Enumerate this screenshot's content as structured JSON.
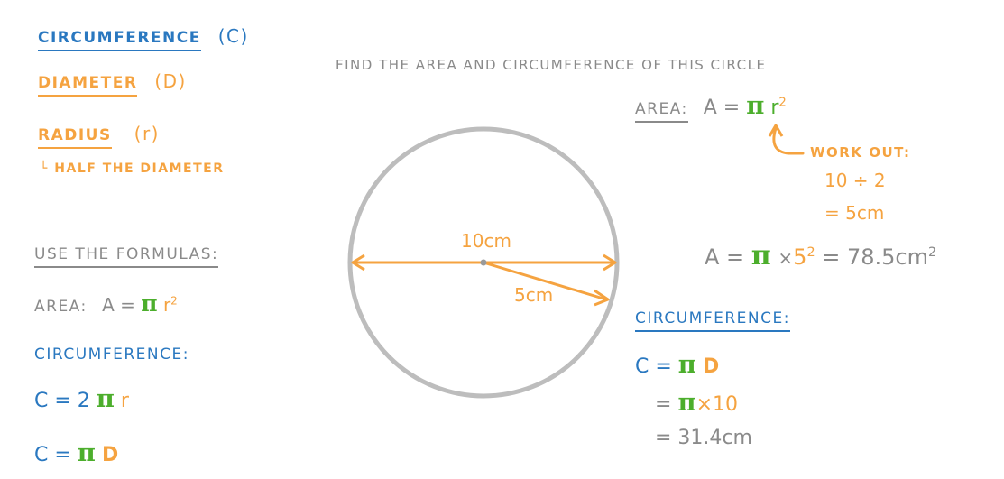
{
  "glossary": {
    "circumference": "CIRCUMFERENCE",
    "circumference_symbol": "(C)",
    "diameter": "DIAMETER",
    "diameter_symbol": "(D)",
    "radius": "RADIUS",
    "radius_symbol": "(r)",
    "radius_note": "└ HALF THE DIAMETER"
  },
  "formulas": {
    "heading": "USE THE FORMULAS:",
    "area_label": "AREA:",
    "area_lhs": "A =",
    "pi": "π",
    "r": "r",
    "squared": "2",
    "circ_heading": "CIRCUMFERENCE:",
    "c_eq1_lhs": "C = 2",
    "c_eq2_lhs": "C =",
    "d": "D"
  },
  "question": "FIND THE AREA AND CIRCUMFERENCE OF THIS CIRCLE",
  "diagram": {
    "diameter_label": "10cm",
    "radius_label": "5cm",
    "colors": {
      "circle": "#bdbdbd",
      "diameter_line": "#f5a340",
      "radius_line": "#f5a340"
    }
  },
  "solution": {
    "area_label": "AREA:",
    "area_lhs": "A =",
    "pi": "π",
    "r": "r",
    "squared": "2",
    "workout_label": "WORK OUT:",
    "workout_line1": "10 ÷ 2",
    "workout_line2": "= 5cm",
    "area_calc_lhs": "A =",
    "area_calc_times": "×",
    "area_calc_base": "5",
    "area_calc_result": "= 78.5cm",
    "circ_heading": "CIRCUMFERENCE:",
    "c_line1_lhs": "C =",
    "d": "D",
    "c_line2_eq": "=",
    "c_line2_rest": "×10",
    "c_line3": "= 31.4cm"
  },
  "palette": {
    "blue": "#2a78c0",
    "orange": "#f5a340",
    "green": "#4cae2c",
    "gray": "#8a8a8a"
  }
}
